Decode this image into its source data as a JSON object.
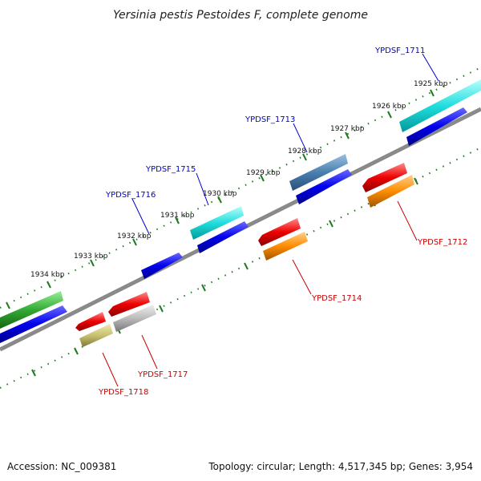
{
  "title": "Yersinia pestis Pestoides F, complete genome",
  "footer": {
    "accession": "Accession: NC_009381",
    "summary": "Topology: circular; Length: 4,517,345 bp; Genes: 3,954"
  },
  "kbp_ticks": [
    "1925 kbp",
    "1926 kbp",
    "1927 kbp",
    "1928 kbp",
    "1929 kbp",
    "1930 kbp",
    "1931 kbp",
    "1932 kbp",
    "1933 kbp",
    "1934 kbp"
  ],
  "labels": {
    "ypdsf_1711": "YPDSF_1711",
    "ypdsf_1713": "YPDSF_1713",
    "ypdsf_1715": "YPDSF_1715",
    "ypdsf_1716": "YPDSF_1716",
    "ypdsf_1712": "YPDSF_1712",
    "ypdsf_1714": "YPDSF_1714",
    "ypdsf_1717": "YPDSF_1717",
    "ypdsf_1718": "YPDSF_1718"
  },
  "colors": {
    "backbone": "#8a8a8a",
    "tick": "#1e7a1e",
    "forward_label": "#0000cc",
    "reverse_label": "#cc0000",
    "cds": "#0000ee",
    "cyan": "#22dddd",
    "steelblue": "#4a7fb0",
    "green": "#33aa33",
    "red": "#ee0000",
    "orange": "#ff8c00",
    "gray": "#bbbbbb",
    "khaki": "#c8c070"
  }
}
